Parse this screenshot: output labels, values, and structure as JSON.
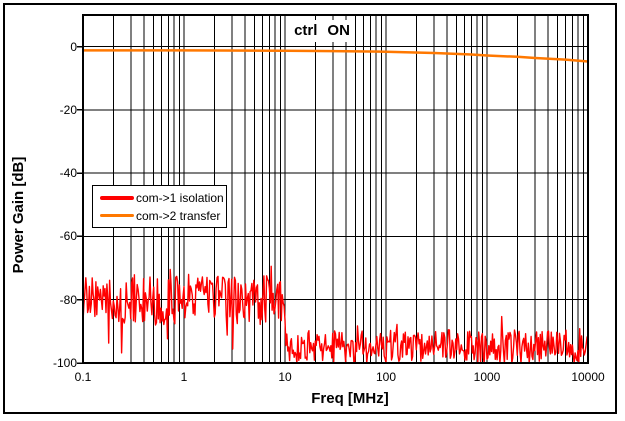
{
  "figure": {
    "background_color": "#ffffff",
    "border_color": "#000000"
  },
  "chart_data": {
    "type": "line",
    "annotation": "ctrl ON",
    "xlabel": "Freq [MHz]",
    "ylabel": "Power Gain [dB]",
    "x_axis": {
      "scale": "log",
      "min": 0.1,
      "max": 10000,
      "tick_values": [
        0.1,
        1,
        10,
        100,
        1000,
        10000
      ],
      "tick_labels": [
        "0.1",
        "1",
        "10",
        "100",
        "1000",
        "10000"
      ],
      "minor_gridlines": true
    },
    "y_axis": {
      "min": -100,
      "max": 10,
      "major_unit": 20,
      "tick_values": [
        0,
        -20,
        -40,
        -60,
        -80,
        -100
      ],
      "tick_labels": [
        "0",
        "-20",
        "-40",
        "-60",
        "-80",
        "-100"
      ]
    },
    "grid": {
      "color": "#000000",
      "horizontal": "major",
      "vertical": "log-minor-and-major"
    },
    "legend": {
      "position": "middle-left",
      "entries": [
        {
          "label": "com->1 isolation",
          "color": "#FF0000",
          "line_width": 4
        },
        {
          "label": "com->2 transfer",
          "color": "#FF7800",
          "line_width": 3
        }
      ]
    },
    "series": [
      {
        "name": "com->1 isolation",
        "color": "#FF0000",
        "style": "noise",
        "width": 1.4,
        "clip_min_dB": -100,
        "noise_segments": [
          {
            "f_range": [
              0.1,
              10
            ],
            "mean_dB": -80,
            "spread_dB": 8,
            "down_spike_p": 0.07,
            "down_spike_dB": 14,
            "up_spike_p": 0.06,
            "up_spike_dB": 4
          },
          {
            "f_range": [
              10,
              10000
            ],
            "mean_dB": -94.5,
            "spread_dB": 5,
            "down_spike_p": 0.12,
            "down_spike_dB": 7,
            "up_spike_p": 0.05,
            "up_spike_dB": 5
          }
        ],
        "summary": "Noisy isolation floor: about -80 dB from 0.1-10 MHz, stepping to about -95 dB from 10-10000 MHz, spikes reaching -100 dB"
      },
      {
        "name": "com->2 transfer",
        "color": "#FF7800",
        "style": "line",
        "width": 2.5,
        "points": [
          [
            0.1,
            -1.2
          ],
          [
            1,
            -1.2
          ],
          [
            5,
            -1.25
          ],
          [
            10,
            -1.3
          ],
          [
            30,
            -1.4
          ],
          [
            100,
            -1.6
          ],
          [
            300,
            -2.0
          ],
          [
            700,
            -2.5
          ],
          [
            1000,
            -2.8
          ],
          [
            2000,
            -3.2
          ],
          [
            3000,
            -3.6
          ],
          [
            6000,
            -4.1
          ],
          [
            10000,
            -4.7
          ]
        ]
      }
    ]
  }
}
